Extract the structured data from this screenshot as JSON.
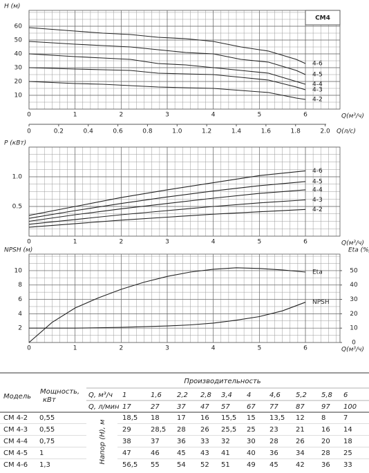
{
  "chart_data": [
    {
      "type": "line",
      "label": "CM4",
      "ylabel": "H (м)",
      "xlabel": "Q(м³/ч)",
      "x2label": "Q(л/с)",
      "xlim": [
        0,
        6.75
      ],
      "ylim": [
        0,
        71.5
      ],
      "xticks": [
        0,
        1,
        2,
        3,
        4,
        5,
        6
      ],
      "yticks": [
        10,
        20,
        30,
        40,
        50,
        60
      ],
      "x2lim": [
        0,
        2.1
      ],
      "x2ticks": [
        0,
        0.2,
        0.4,
        0.6,
        0.8,
        {
          "value": 1,
          "label": "1.0"
        },
        1.2,
        1.4,
        1.6,
        1.8,
        {
          "value": 2,
          "label": "2.0"
        }
      ],
      "grid": true,
      "x": [
        0,
        1,
        1.6,
        2.2,
        2.8,
        3.4,
        4,
        4.6,
        5.2,
        5.8,
        6
      ],
      "series": [
        {
          "name": "4-2",
          "color": "#222222",
          "values": [
            20,
            18.5,
            18,
            17,
            16,
            15.5,
            15,
            13.5,
            12,
            8,
            7
          ]
        },
        {
          "name": "4-3",
          "color": "#222222",
          "values": [
            30,
            29,
            28.5,
            28,
            26,
            25.5,
            25,
            23,
            21,
            16,
            14
          ]
        },
        {
          "name": "4-4",
          "color": "#222222",
          "values": [
            40,
            38,
            37,
            36,
            33,
            32,
            30,
            28,
            26,
            20,
            18
          ]
        },
        {
          "name": "4-5",
          "color": "#222222",
          "values": [
            49,
            47,
            46,
            45,
            43,
            41,
            40,
            36,
            34,
            28,
            25
          ]
        },
        {
          "name": "4-6",
          "color": "#222222",
          "values": [
            59,
            56.5,
            55,
            54,
            52,
            51,
            49,
            45,
            42,
            36,
            33
          ]
        }
      ]
    },
    {
      "type": "line",
      "ylabel": "P (кВт)",
      "xlabel": "Q(м³/ч)",
      "xlim": [
        0,
        6.75
      ],
      "ylim": [
        0,
        1.5
      ],
      "xticks": [
        0,
        1,
        2,
        3,
        4,
        5,
        6
      ],
      "yticks": [
        0.5,
        {
          "value": 1,
          "label": "1.0"
        }
      ],
      "grid": true,
      "x": [
        0,
        1,
        2,
        3,
        4,
        5,
        6
      ],
      "series": [
        {
          "name": "4-2",
          "color": "#222222",
          "values": [
            0.15,
            0.21,
            0.27,
            0.32,
            0.37,
            0.41,
            0.45
          ]
        },
        {
          "name": "4-3",
          "color": "#222222",
          "values": [
            0.2,
            0.28,
            0.36,
            0.43,
            0.5,
            0.56,
            0.61
          ]
        },
        {
          "name": "4-4",
          "color": "#222222",
          "values": [
            0.25,
            0.36,
            0.46,
            0.55,
            0.64,
            0.72,
            0.78
          ]
        },
        {
          "name": "4-5",
          "color": "#222222",
          "values": [
            0.3,
            0.43,
            0.55,
            0.66,
            0.76,
            0.85,
            0.92
          ]
        },
        {
          "name": "4-6",
          "color": "#222222",
          "values": [
            0.35,
            0.5,
            0.65,
            0.78,
            0.9,
            1.02,
            1.1
          ]
        }
      ]
    },
    {
      "type": "line",
      "ylabel": "NPSH (м)",
      "y2label": "Eta (%)",
      "xlabel": "Q(м³/ч)",
      "xlim": [
        0,
        6.75
      ],
      "ylim": [
        0,
        12.3
      ],
      "y2lim": [
        0,
        61.5
      ],
      "xticks": [
        0,
        1,
        2,
        3,
        4,
        5,
        6
      ],
      "yticks": [
        2,
        4,
        6,
        8,
        10
      ],
      "y2ticks": [
        0,
        10,
        20,
        30,
        40,
        50
      ],
      "grid": true,
      "x": [
        0,
        0.5,
        1,
        1.5,
        2,
        2.5,
        3,
        3.5,
        4,
        4.5,
        5,
        5.5,
        6
      ],
      "series": [
        {
          "name": "Eta",
          "color": "#222222",
          "axis": "y2",
          "values": [
            0,
            14,
            24,
            31,
            37,
            42,
            46,
            49,
            51,
            52,
            51.5,
            50.5,
            49
          ]
        },
        {
          "name": "NPSH",
          "color": "#222222",
          "values": [
            2,
            2,
            2,
            2.05,
            2.1,
            2.2,
            2.3,
            2.45,
            2.7,
            3.1,
            3.6,
            4.4,
            5.6
          ]
        }
      ]
    }
  ],
  "table": {
    "model": "Модель",
    "power": [
      "Мощность,",
      "кВт"
    ],
    "capacity": "Производительность",
    "q_m3h_label": "Q, м³/ч",
    "q_lmin_label": "Q, л/мин",
    "head": "Напор (H), м",
    "q_m3h": [
      "1",
      "1,6",
      "2,2",
      "2,8",
      "3,4",
      "4",
      "4,6",
      "5,2",
      "5,8",
      "6"
    ],
    "q_lmin": [
      17,
      27,
      37,
      47,
      57,
      67,
      77,
      87,
      97,
      100
    ],
    "rows": [
      [
        "CM 4-2",
        "0,55",
        "18,5",
        "18",
        "17",
        "16",
        "15,5",
        "15",
        "13,5",
        "12",
        "8",
        "7"
      ],
      [
        "CM 4-3",
        "0,55",
        "29",
        "28,5",
        "28",
        "26",
        "25,5",
        "25",
        "23",
        "21",
        "16",
        "14"
      ],
      [
        "CM 4-4",
        "0,75",
        "38",
        "37",
        "36",
        "33",
        "32",
        "30",
        "28",
        "26",
        "20",
        "18"
      ],
      [
        "CM 4-5",
        "1",
        "47",
        "46",
        "45",
        "43",
        "41",
        "40",
        "36",
        "34",
        "28",
        "25"
      ],
      [
        "CM 4-6",
        "1,3",
        "56,5",
        "55",
        "54",
        "52",
        "51",
        "49",
        "45",
        "42",
        "36",
        "33"
      ]
    ]
  }
}
